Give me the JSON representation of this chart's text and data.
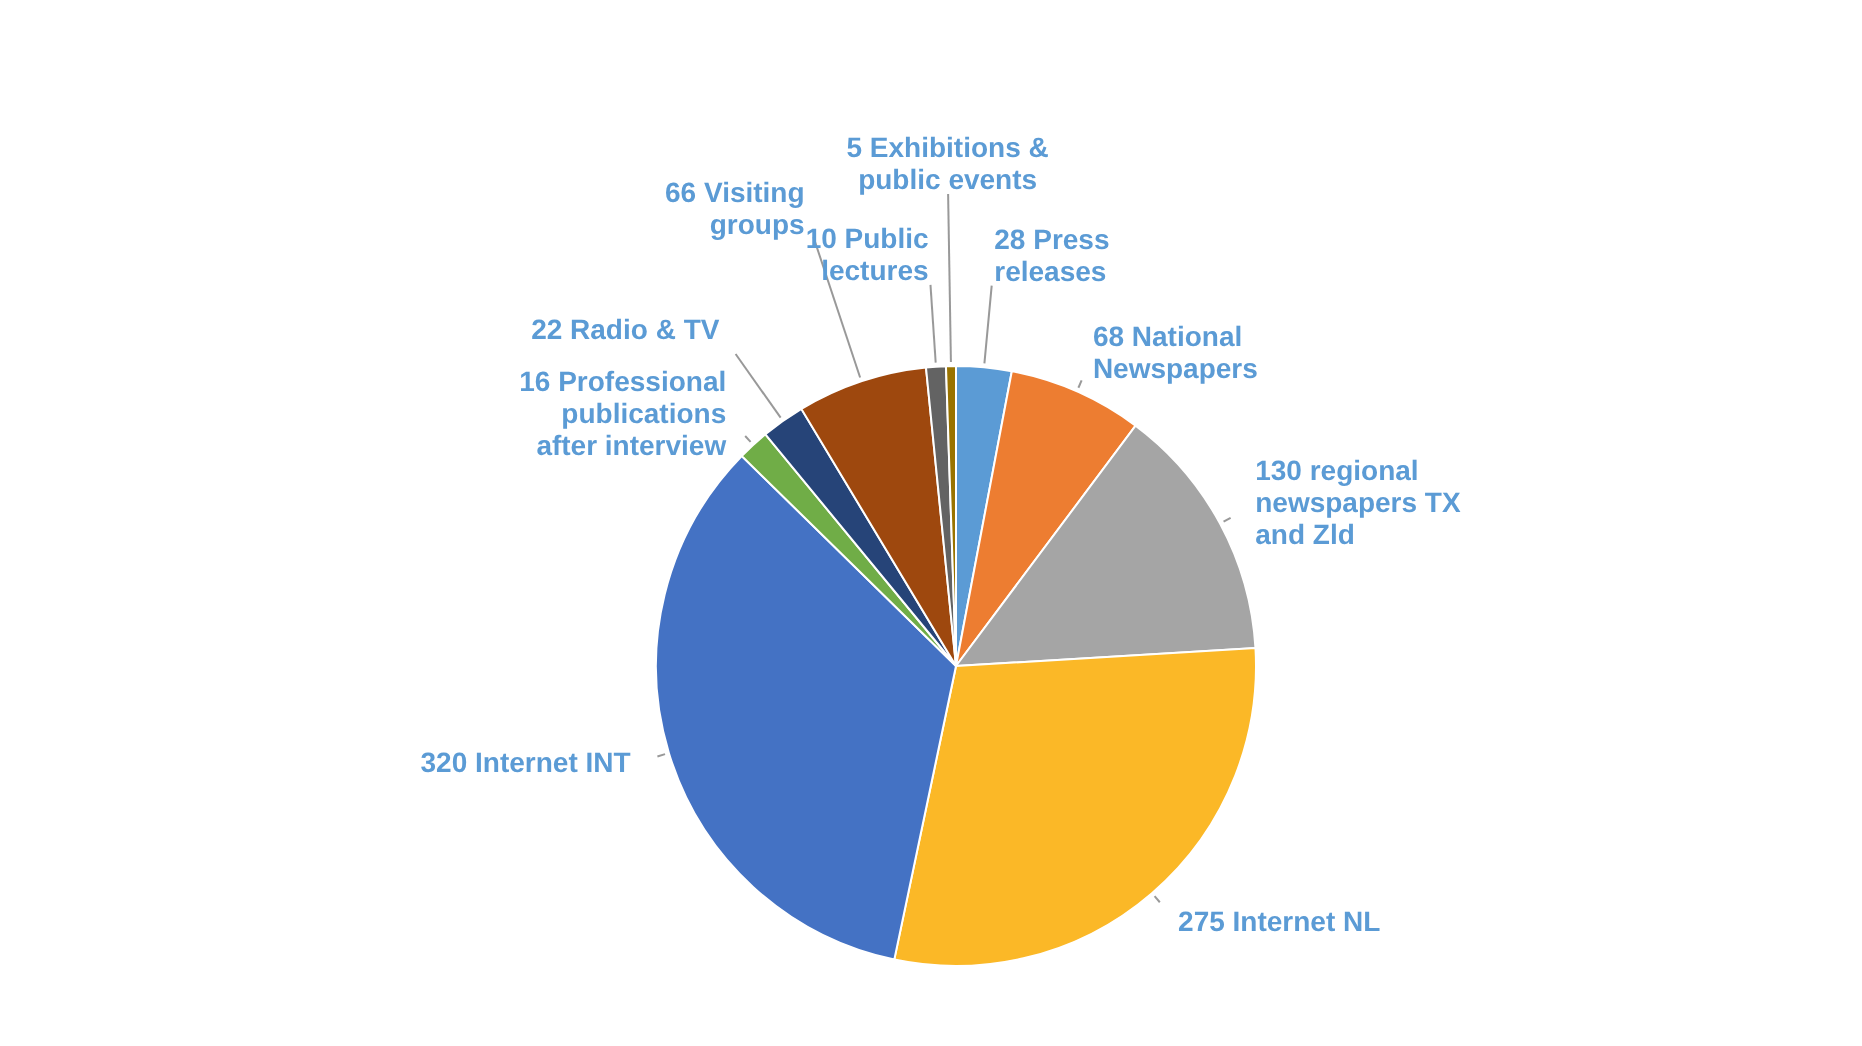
{
  "chart_data": {
    "type": "pie",
    "categories": [
      "28 Press releases",
      "68 National Newspapers",
      "130 regional newspapers TX and Zld",
      "275 Internet NL",
      "320 Internet INT",
      "16 Professional publications after interview",
      "22 Radio & TV",
      "66 Visiting groups",
      "10 Public lectures",
      "5 Exhibitions & public events"
    ],
    "values": [
      28,
      68,
      130,
      275,
      320,
      16,
      22,
      66,
      10,
      5
    ],
    "colors": [
      "#5b9bd5",
      "#ed7d31",
      "#a5a5a5",
      "#fbb827",
      "#4472c4",
      "#70ad47",
      "#264478",
      "#9e480e",
      "#636363",
      "#997300"
    ],
    "legend": false
  }
}
